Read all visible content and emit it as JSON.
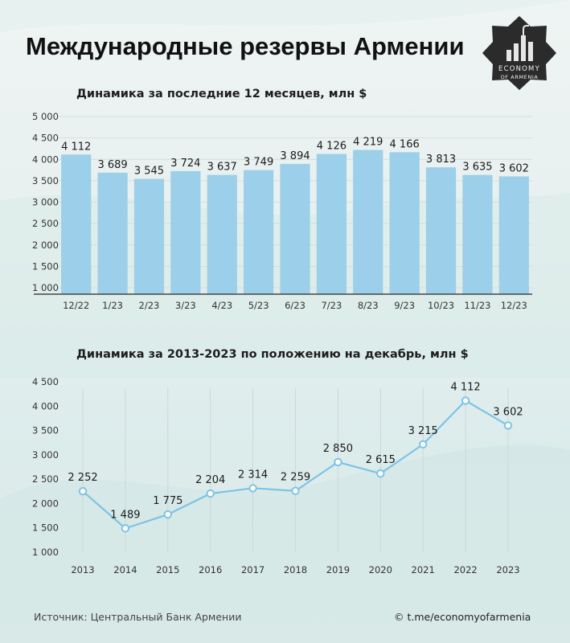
{
  "title": "Международные резервы Армении",
  "logo": {
    "line1": "ECONOMY",
    "line2": "OF ARMENIA",
    "icon": "bar-chart-logo-icon"
  },
  "source": "Источник: Центральный Банк Армении",
  "channel": "© t.me/economyofarmenia",
  "colors": {
    "bar": "#9ccfe9",
    "line": "#7ec3e6",
    "point_fill": "#ffffff",
    "logo_bg": "#2b2b2b"
  },
  "chart_data": [
    {
      "type": "bar",
      "title": "Динамика за последние 12 месяцев, млн $",
      "categories": [
        "12/22",
        "1/23",
        "2/23",
        "3/23",
        "4/23",
        "5/23",
        "6/23",
        "7/23",
        "8/23",
        "9/23",
        "10/23",
        "11/23",
        "12/23"
      ],
      "values": [
        4112,
        3689,
        3545,
        3724,
        3637,
        3749,
        3894,
        4126,
        4219,
        4166,
        3813,
        3635,
        3602
      ],
      "value_labels": [
        "4 112",
        "3 689",
        "3 545",
        "3 724",
        "3 637",
        "3 749",
        "3 894",
        "4 126",
        "4 219",
        "4 166",
        "3 813",
        "3 635",
        "3 602"
      ],
      "yticks": [
        "1 000",
        "1 500",
        "2 000",
        "2 500",
        "3 000",
        "3 500",
        "4 000",
        "4 500",
        "5 000"
      ],
      "ylim": [
        1000,
        5000
      ],
      "grid": true
    },
    {
      "type": "line",
      "title": "Динамика за 2013-2023 по положению на декабрь, млн $",
      "categories": [
        "2013",
        "2014",
        "2015",
        "2016",
        "2017",
        "2018",
        "2019",
        "2020",
        "2021",
        "2022",
        "2023"
      ],
      "values": [
        2252,
        1489,
        1775,
        2204,
        2314,
        2259,
        2850,
        2615,
        3215,
        4112,
        3602
      ],
      "value_labels": [
        "2 252",
        "1 489",
        "1 775",
        "2 204",
        "2 314",
        "2 259",
        "2 850",
        "2 615",
        "3 215",
        "4 112",
        "3 602"
      ],
      "yticks": [
        "1 000",
        "1 500",
        "2 000",
        "2 500",
        "3 000",
        "3 500",
        "4 000",
        "4 500"
      ],
      "ylim": [
        1000,
        4500
      ],
      "grid": true
    }
  ]
}
